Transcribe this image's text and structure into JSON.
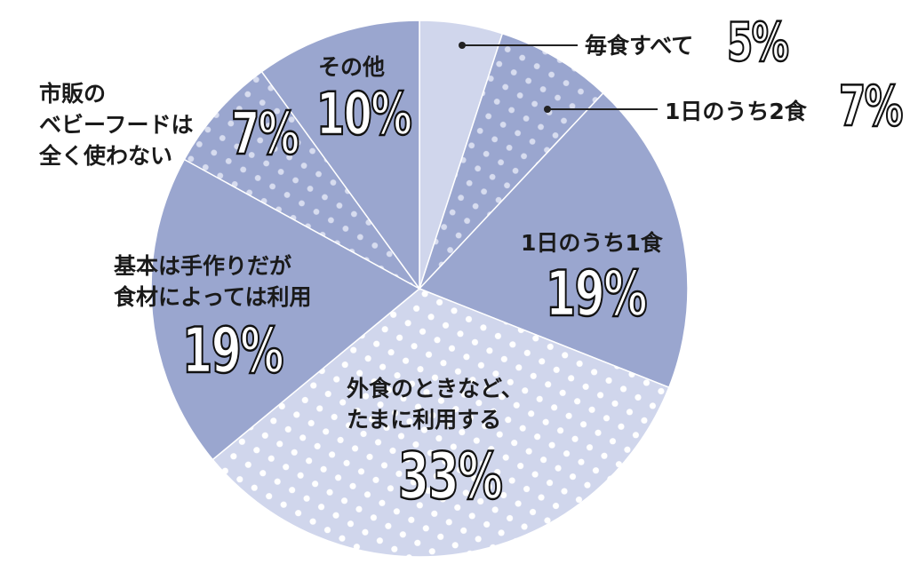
{
  "chart_data": {
    "type": "pie",
    "slices": [
      {
        "label": "毎食すべて",
        "value": 5,
        "display": "5%"
      },
      {
        "label": "1日のうち2食",
        "value": 7,
        "display": "7%"
      },
      {
        "label": "1日のうち1食",
        "value": 19,
        "display": "19%"
      },
      {
        "label": "外食のときなど、\nたまに利用する",
        "value": 33,
        "display": "33%"
      },
      {
        "label": "基本は手作りだが\n食材によっては利用",
        "value": 19,
        "display": "19%"
      },
      {
        "label": "市販の\nベビーフードは\n全く使わない",
        "value": 7,
        "display": "7%"
      },
      {
        "label": "その他",
        "value": 10,
        "display": "10%"
      }
    ],
    "colors": {
      "dark": "#9aa6cf",
      "light": "#d0d6ec",
      "dots_on_dark": "#d7dcef",
      "dots_on_light": "#ffffff"
    }
  }
}
